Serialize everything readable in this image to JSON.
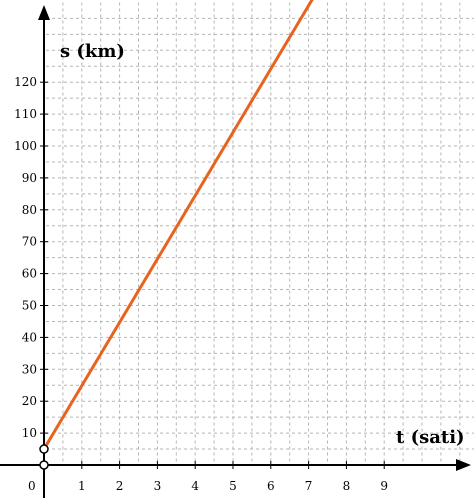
{
  "chart_data": {
    "type": "line",
    "xlabel": "t (sati)",
    "ylabel": "s (km)",
    "origin_label": "0",
    "x_ticks": [
      "1",
      "2",
      "3",
      "4",
      "5",
      "6",
      "7",
      "8",
      "9"
    ],
    "y_ticks": [
      "10",
      "20",
      "30",
      "40",
      "50",
      "60",
      "70",
      "80",
      "90",
      "100",
      "110",
      "120"
    ],
    "xlim": [
      0,
      11.2
    ],
    "ylim": [
      0,
      145
    ],
    "grid": true,
    "grid_step_x": 0.5,
    "grid_step_y": 5,
    "series": [
      {
        "x": [
          0,
          7.1
        ],
        "y": [
          5,
          146
        ]
      }
    ],
    "points": [
      {
        "x": 0,
        "y": 5
      },
      {
        "x": 0,
        "y": 0
      }
    ],
    "colors": {
      "line": "#E8641E",
      "grid": "#b5b5b5",
      "axis": "#000000"
    }
  }
}
